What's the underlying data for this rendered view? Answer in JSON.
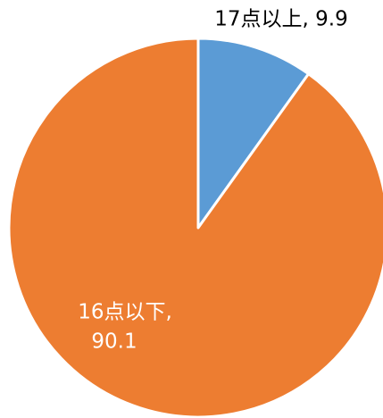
{
  "chart_data": {
    "type": "pie",
    "values": [
      9.9,
      90.1
    ],
    "colors": [
      "#5b9bd5",
      "#ed7d31"
    ],
    "labels": [
      [
        "17点以上, 9.9"
      ],
      [
        "16点以下,",
        "90.1"
      ]
    ],
    "label_colors": [
      "#000000",
      "#ffffff"
    ]
  }
}
